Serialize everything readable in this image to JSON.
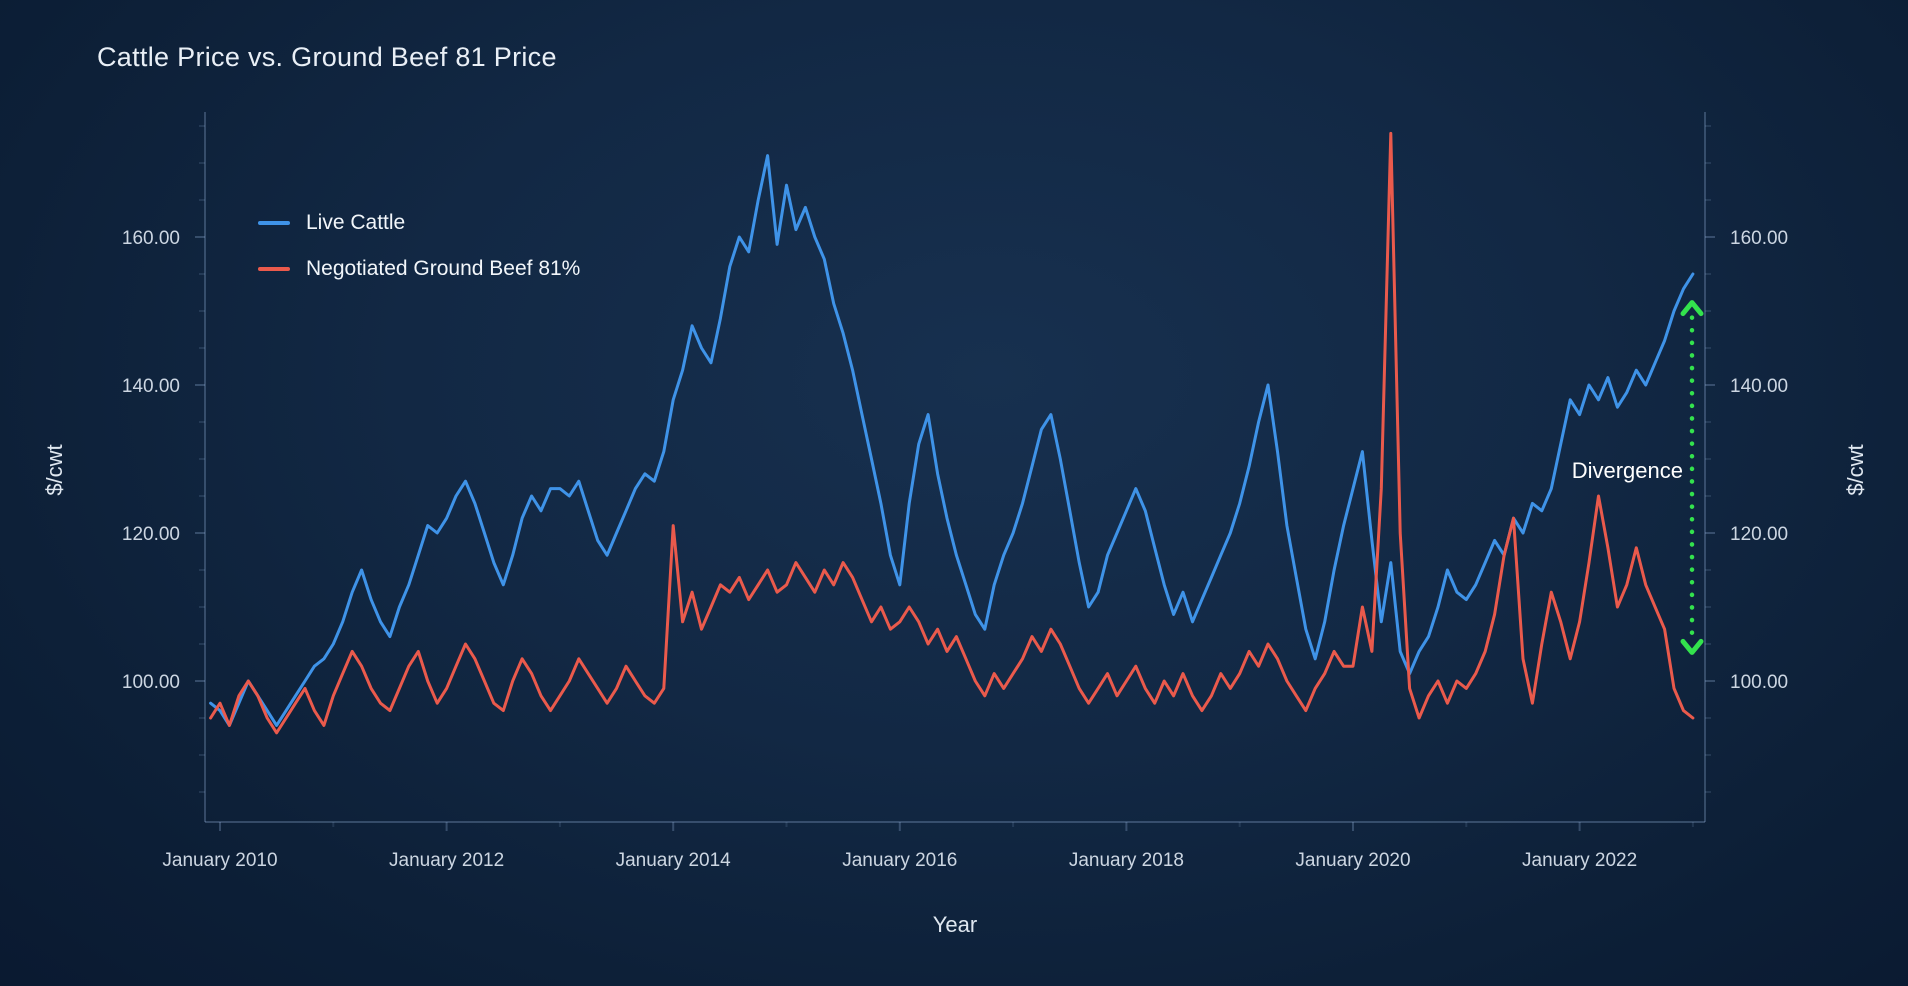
{
  "title": "Cattle Price vs. Ground Beef 81 Price",
  "legend": [
    {
      "label": "Live Cattle",
      "color": "#3f93e8"
    },
    {
      "label": "Negotiated Ground Beef 81%",
      "color": "#ea5a4c"
    }
  ],
  "axes": {
    "y_left_label": "$/cwt",
    "y_right_label": "$/cwt",
    "x_label": "Year",
    "y_tick_labels": [
      "100.00",
      "120.00",
      "140.00",
      "160.00"
    ],
    "x_tick_labels": [
      "January 2010",
      "January 2012",
      "January 2014",
      "January 2016",
      "January 2018",
      "January 2020",
      "January 2022"
    ]
  },
  "annotation": {
    "text": "Divergence",
    "arrow_color": "#33e24d",
    "arrow_top_value": 151,
    "arrow_bottom_value": 104
  },
  "chart_data": {
    "type": "line",
    "title": "Cattle Price vs. Ground Beef 81 Price",
    "xlabel": "Year",
    "ylabel": "$/cwt",
    "x_start_month": "2009-12",
    "x_end_month": "2023-01",
    "frequency": "monthly",
    "ylim": [
      80,
      178
    ],
    "y_ticks": [
      100,
      120,
      140,
      160
    ],
    "x_tick_years": [
      2010,
      2012,
      2014,
      2016,
      2018,
      2020,
      2022
    ],
    "grid": false,
    "legend_position": "top-left",
    "series": [
      {
        "name": "Live Cattle",
        "color": "#3f93e8",
        "values": [
          97,
          96,
          94,
          97,
          100,
          98,
          96,
          94,
          96,
          98,
          100,
          102,
          103,
          105,
          108,
          112,
          115,
          111,
          108,
          106,
          110,
          113,
          117,
          121,
          120,
          122,
          125,
          127,
          124,
          120,
          116,
          113,
          117,
          122,
          125,
          123,
          126,
          126,
          125,
          127,
          123,
          119,
          117,
          120,
          123,
          126,
          128,
          127,
          131,
          138,
          142,
          148,
          145,
          143,
          149,
          156,
          160,
          158,
          165,
          171,
          159,
          167,
          161,
          164,
          160,
          157,
          151,
          147,
          142,
          136,
          130,
          124,
          117,
          113,
          124,
          132,
          136,
          128,
          122,
          117,
          113,
          109,
          107,
          113,
          117,
          120,
          124,
          129,
          134,
          136,
          130,
          123,
          116,
          110,
          112,
          117,
          120,
          123,
          126,
          123,
          118,
          113,
          109,
          112,
          108,
          111,
          114,
          117,
          120,
          124,
          129,
          135,
          140,
          131,
          121,
          114,
          107,
          103,
          108,
          115,
          121,
          126,
          131,
          119,
          108,
          116,
          104,
          101,
          104,
          106,
          110,
          115,
          112,
          111,
          113,
          116,
          119,
          117,
          122,
          120,
          124,
          123,
          126,
          132,
          138,
          136,
          140,
          138,
          141,
          137,
          139,
          142,
          140,
          143,
          146,
          150,
          153,
          155
        ]
      },
      {
        "name": "Negotiated Ground Beef 81%",
        "color": "#ea5a4c",
        "values": [
          95,
          97,
          94,
          98,
          100,
          98,
          95,
          93,
          95,
          97,
          99,
          96,
          94,
          98,
          101,
          104,
          102,
          99,
          97,
          96,
          99,
          102,
          104,
          100,
          97,
          99,
          102,
          105,
          103,
          100,
          97,
          96,
          100,
          103,
          101,
          98,
          96,
          98,
          100,
          103,
          101,
          99,
          97,
          99,
          102,
          100,
          98,
          97,
          99,
          121,
          108,
          112,
          107,
          110,
          113,
          112,
          114,
          111,
          113,
          115,
          112,
          113,
          116,
          114,
          112,
          115,
          113,
          116,
          114,
          111,
          108,
          110,
          107,
          108,
          110,
          108,
          105,
          107,
          104,
          106,
          103,
          100,
          98,
          101,
          99,
          101,
          103,
          106,
          104,
          107,
          105,
          102,
          99,
          97,
          99,
          101,
          98,
          100,
          102,
          99,
          97,
          100,
          98,
          101,
          98,
          96,
          98,
          101,
          99,
          101,
          104,
          102,
          105,
          103,
          100,
          98,
          96,
          99,
          101,
          104,
          102,
          102,
          110,
          104,
          126,
          174,
          120,
          99,
          95,
          98,
          100,
          97,
          100,
          99,
          101,
          104,
          109,
          117,
          122,
          103,
          97,
          105,
          112,
          108,
          103,
          108,
          116,
          125,
          118,
          110,
          113,
          118,
          113,
          110,
          107,
          99,
          96,
          95
        ]
      }
    ]
  }
}
